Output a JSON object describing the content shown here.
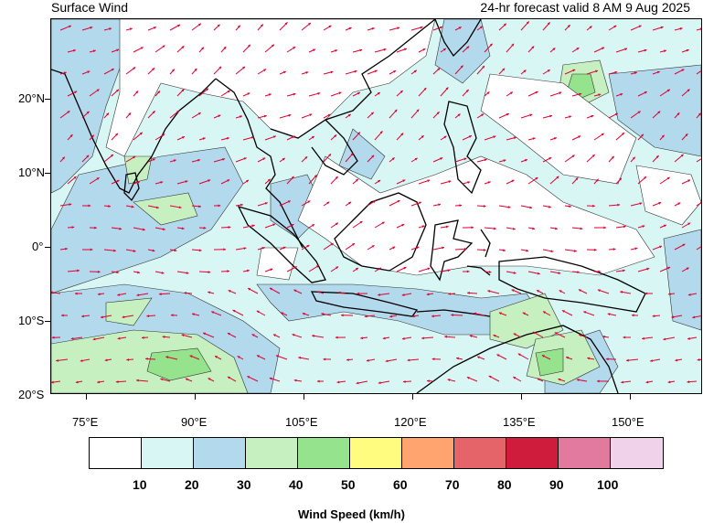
{
  "header": {
    "title_left": "Surface Wind",
    "title_right": "24-hr forecast valid 8 AM 9 Aug 2025"
  },
  "axes": {
    "lat_labels": [
      "20°N",
      "10°N",
      "0°",
      "10°S",
      "20°S"
    ],
    "lon_labels": [
      "75°E",
      "90°E",
      "105°E",
      "120°E",
      "135°E",
      "150°E"
    ]
  },
  "colorbar": {
    "title": "Wind Speed (km/h)",
    "tick_labels": [
      "10",
      "20",
      "30",
      "40",
      "50",
      "60",
      "70",
      "80",
      "90",
      "100"
    ],
    "colors": [
      "#ffffff",
      "#d8f6f4",
      "#b2d9ec",
      "#c6f0bf",
      "#96e38e",
      "#fffc7f",
      "#ffa46e",
      "#e5646a",
      "#d01c3c",
      "#e27a9f",
      "#f0d2ea"
    ]
  },
  "map": {
    "extent_lon": [
      70,
      160
    ],
    "extent_lat": [
      -20,
      30
    ],
    "arrow_color": "#e00030",
    "coast_color": "#000000"
  }
}
